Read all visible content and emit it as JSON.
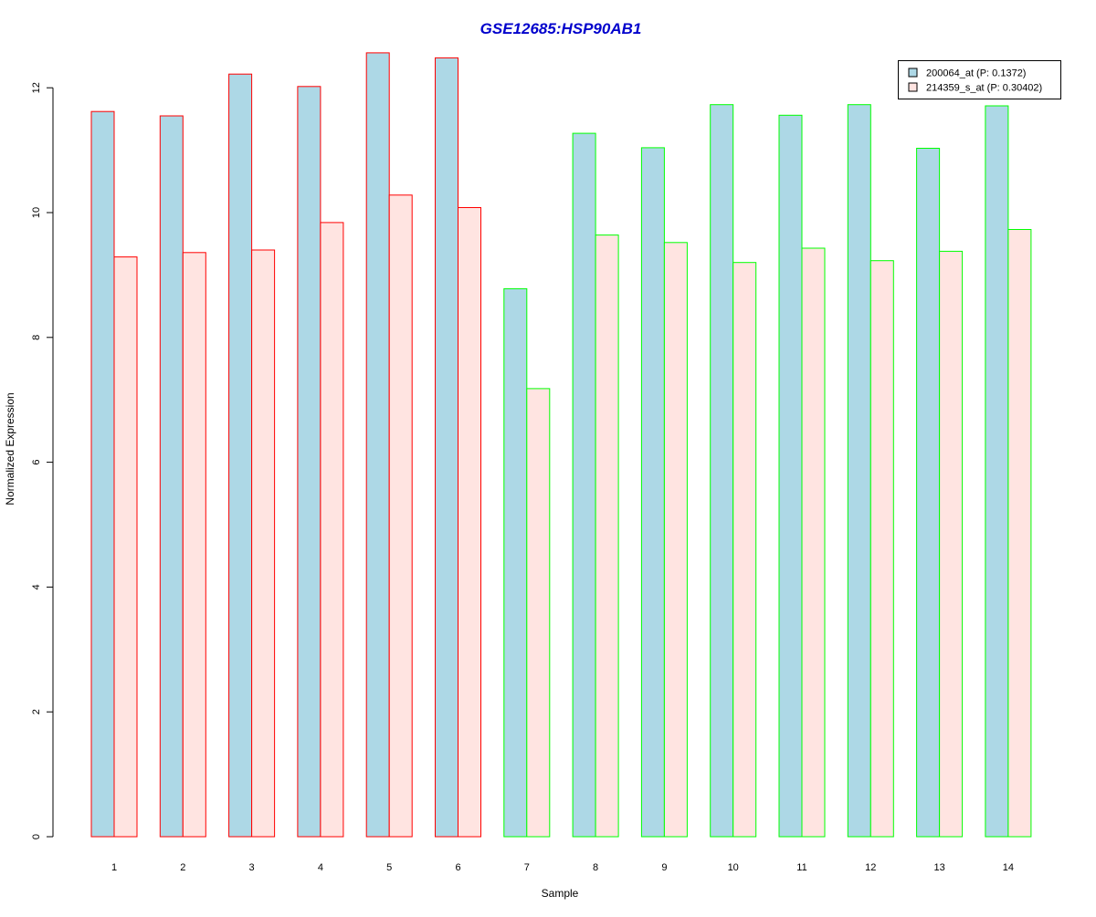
{
  "chart_data": {
    "type": "bar",
    "title": "GSE12685:HSP90AB1",
    "title_color": "#0000CC",
    "xlabel": "Sample",
    "ylabel": "Normalized Expression",
    "categories": [
      "1",
      "2",
      "3",
      "4",
      "5",
      "6",
      "7",
      "8",
      "9",
      "10",
      "11",
      "12",
      "13",
      "14"
    ],
    "yticks": [
      0,
      2,
      4,
      6,
      8,
      10,
      12
    ],
    "ylim": [
      0,
      12.6
    ],
    "grid": false,
    "legend_position": "top-right",
    "series": [
      {
        "name": "200064_at (P: 0.1372)",
        "fill": "#ADD8E6",
        "values": [
          11.62,
          11.55,
          12.22,
          12.02,
          12.56,
          12.48,
          8.78,
          11.27,
          11.04,
          11.73,
          11.56,
          11.73,
          11.03,
          11.71
        ]
      },
      {
        "name": "214359_s_at (P: 0.30402)",
        "fill": "#FFE4E1",
        "values": [
          9.29,
          9.36,
          9.4,
          9.84,
          10.28,
          10.08,
          7.18,
          9.64,
          9.52,
          9.2,
          9.43,
          9.23,
          9.38,
          9.73
        ]
      }
    ],
    "group_border_colors": [
      "#FF0000",
      "#FF0000",
      "#FF0000",
      "#FF0000",
      "#FF0000",
      "#FF0000",
      "#00FF00",
      "#00FF00",
      "#00FF00",
      "#00FF00",
      "#00FF00",
      "#00FF00",
      "#00FF00",
      "#00FF00"
    ]
  }
}
